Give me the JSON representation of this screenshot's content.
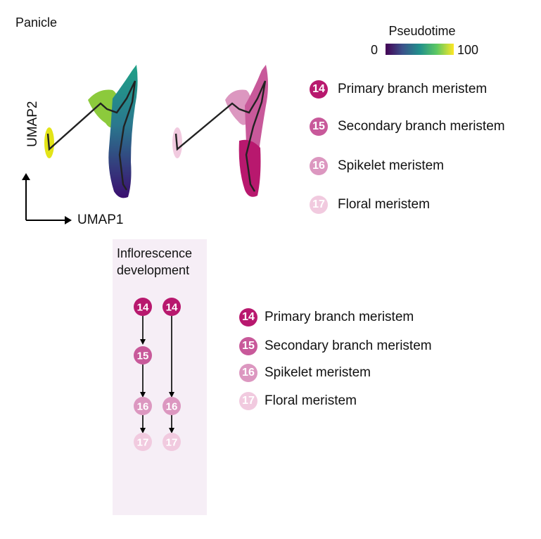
{
  "panel_label": "Panicle",
  "pseudotime": {
    "title": "Pseudotime",
    "min": "0",
    "max": "100"
  },
  "axes": {
    "x_label": "UMAP1",
    "y_label": "UMAP2"
  },
  "legend": [
    {
      "id": "14",
      "label": "Primary branch meristem",
      "color": "#b8186e"
    },
    {
      "id": "15",
      "label": "Secondary branch meristem",
      "color": "#c8599a"
    },
    {
      "id": "16",
      "label": "Spikelet meristem",
      "color": "#dc97c0"
    },
    {
      "id": "17",
      "label": "Floral meristem",
      "color": "#f1cadf"
    }
  ],
  "development": {
    "title_line1": "Inflorescence",
    "title_line2": "development",
    "paths": [
      [
        "14",
        "15",
        "16",
        "17"
      ],
      [
        "14",
        "16",
        "17"
      ]
    ]
  }
}
